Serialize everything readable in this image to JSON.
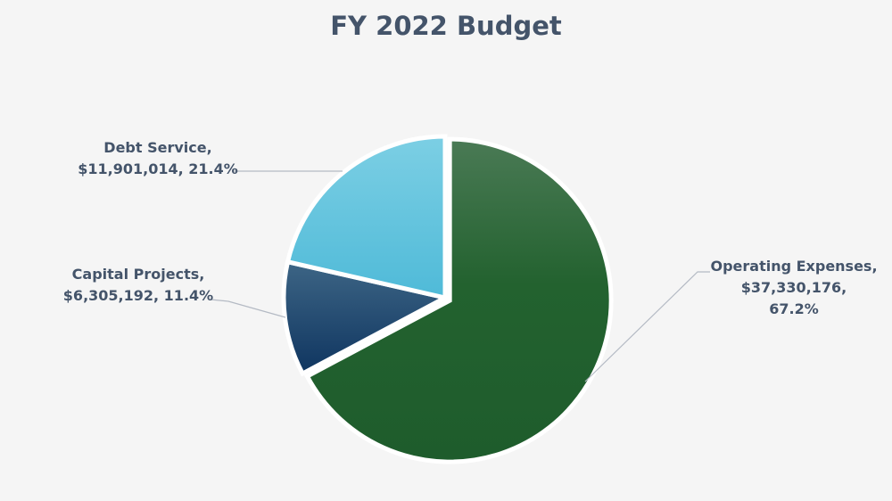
{
  "chart_data": {
    "type": "pie",
    "title": "FY 2022 Budget",
    "slices": [
      {
        "label": "Operating Expenses",
        "value": 37330176,
        "value_text": "$37,330,176",
        "percent": 67.2,
        "percent_text": "67.2%",
        "color": "#22602f"
      },
      {
        "label": "Capital Projects",
        "value": 6305192,
        "value_text": "$6,305,192",
        "percent": 11.4,
        "percent_text": "11.4%",
        "color": "#173f66"
      },
      {
        "label": "Debt Service",
        "value": 11901014,
        "value_text": "$11,901,014",
        "percent": 21.4,
        "percent_text": "21.4%",
        "color": "#5cc1dc"
      }
    ],
    "legend": "none",
    "data_labels": "outside-with-leader-lines"
  }
}
